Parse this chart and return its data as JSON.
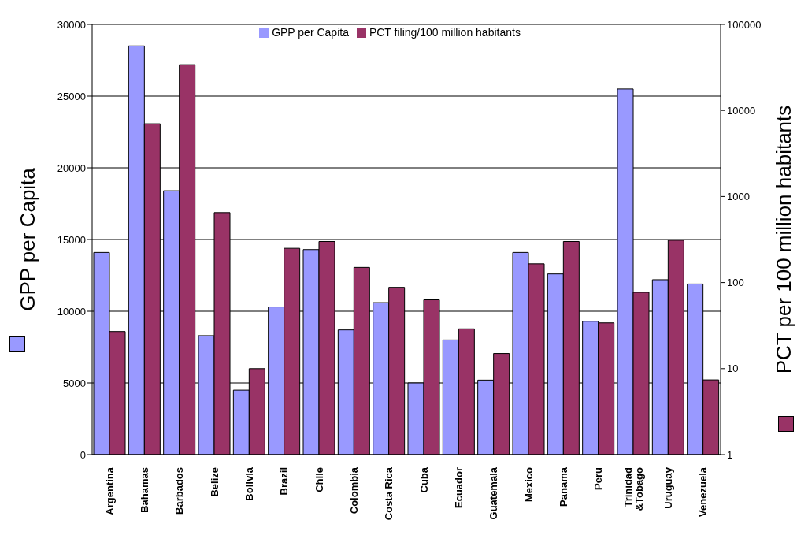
{
  "chart_data": {
    "type": "bar",
    "ylabel": "GPP per Capita",
    "y2label": "PCT per 100 million habitants",
    "categories": [
      "Argentina",
      "Bahamas",
      "Barbados",
      "Belize",
      "Bolivia",
      "Brazil",
      "Chile",
      "Colombia",
      "Costa Rica",
      "Cuba",
      "Ecuador",
      "Guatemala",
      "Mexico",
      "Panama",
      "Peru",
      "Trinidad\n&Tobago",
      "Uruguay",
      "Venezuela"
    ],
    "series": [
      {
        "name": "GPP per Capita",
        "color": "#9999ff",
        "values": [
          14100,
          28500,
          18400,
          8300,
          4500,
          10300,
          14300,
          8700,
          10600,
          5000,
          8000,
          5200,
          14100,
          12600,
          9300,
          25500,
          12200,
          11900
        ]
      },
      {
        "name": "PCT filing/100 million habitants",
        "color": "#993366",
        "axis": "y2",
        "values": [
          27,
          7000,
          34000,
          650,
          10,
          250,
          300,
          150,
          88,
          63,
          29,
          15,
          165,
          300,
          34,
          77,
          310,
          7.4
        ]
      }
    ],
    "ylim": [
      0,
      30000
    ],
    "yticks": [
      0,
      5000,
      10000,
      15000,
      20000,
      25000,
      30000
    ],
    "y2lim": [
      1,
      100000
    ],
    "y2ticks": [
      1,
      10,
      100,
      1000,
      10000,
      100000
    ],
    "log": "y2",
    "grid": "y",
    "legend": "top"
  }
}
